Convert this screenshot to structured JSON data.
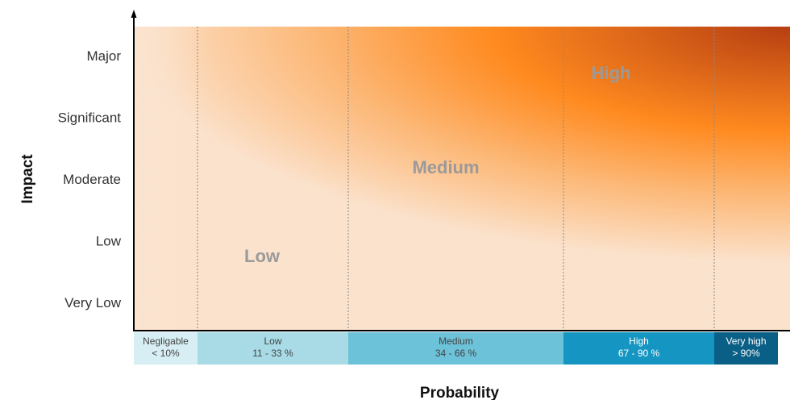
{
  "chart_data": {
    "type": "heatmap",
    "title": "",
    "xlabel": "Probability",
    "ylabel": "Impact",
    "y_categories": [
      "Very Low",
      "Low",
      "Moderate",
      "Significant",
      "Major"
    ],
    "x_categories": [
      {
        "name": "Negligable",
        "range": "< 10%",
        "color": "#d7eff4",
        "text_color": "#444444"
      },
      {
        "name": "Low",
        "range": "11 - 33 %",
        "color": "#a8dbe5",
        "text_color": "#444444"
      },
      {
        "name": "Medium",
        "range": "34 - 66 %",
        "color": "#6cc2d8",
        "text_color": "#444444"
      },
      {
        "name": "High",
        "range": "67 - 90 %",
        "color": "#1596c2",
        "text_color": "#ffffff"
      },
      {
        "name": "Very high",
        "range": "> 90%",
        "color": "#0a5f86",
        "text_color": "#ffffff"
      }
    ],
    "zones": [
      {
        "label": "Low",
        "color": "#9a9a9a"
      },
      {
        "label": "Medium",
        "color": "#9a9a9a"
      },
      {
        "label": "High",
        "color": "#9a9a9a"
      }
    ],
    "gradient_colors": {
      "low": "#fbe2cc",
      "medium": "#ff8a1f",
      "high": "#b53d12"
    },
    "grid": false
  }
}
